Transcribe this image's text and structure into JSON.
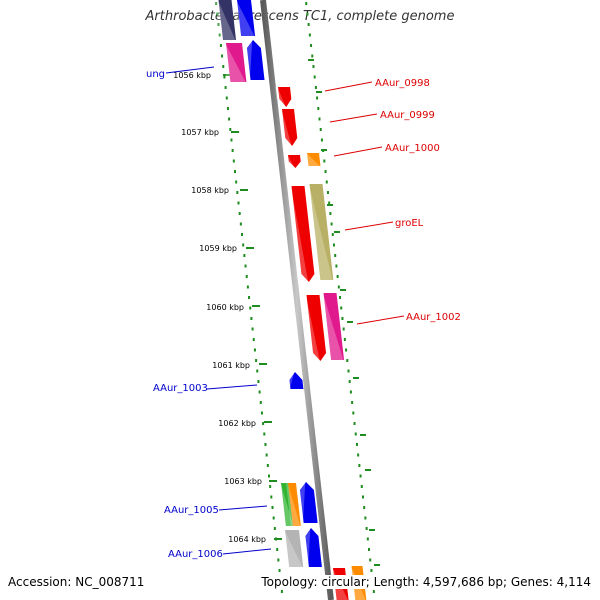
{
  "title": "Arthrobacter aurescens TC1, complete genome",
  "accession": "Accession: NC_008711",
  "topology": "Topology: circular; Length: 4,597,686 bp; Genes: 4,114",
  "colors": {
    "backbone": "#8a8a8a",
    "tick": "#1e8c1e",
    "label_minus": "#0000cc",
    "label_plus": "#dd0000"
  },
  "kbp_labels": [
    "1056 kbp",
    "1057 kbp",
    "1058 kbp",
    "1059 kbp",
    "1060 kbp",
    "1061 kbp",
    "1062 kbp",
    "1063 kbp",
    "1064 kbp"
  ],
  "genes_minus": [
    {
      "name": "ung",
      "strand": "-",
      "color": "#0000ee"
    },
    {
      "name": "AAur_1003",
      "strand": "-",
      "color": "#0000ee"
    },
    {
      "name": "AAur_1005",
      "strand": "-",
      "color": "#0000ee"
    },
    {
      "name": "AAur_1006",
      "strand": "-",
      "color": "#0000ee"
    }
  ],
  "genes_plus": [
    {
      "name": "AAur_0998",
      "strand": "+",
      "color": "#ee0000"
    },
    {
      "name": "AAur_0999",
      "strand": "+",
      "color": "#ee0000"
    },
    {
      "name": "AAur_1000",
      "strand": "+",
      "color": "#ee0000"
    },
    {
      "name": "groEL",
      "strand": "+",
      "color": "#ee0000"
    },
    {
      "name": "AAur_1002",
      "strand": "+",
      "color": "#ee0000"
    }
  ]
}
